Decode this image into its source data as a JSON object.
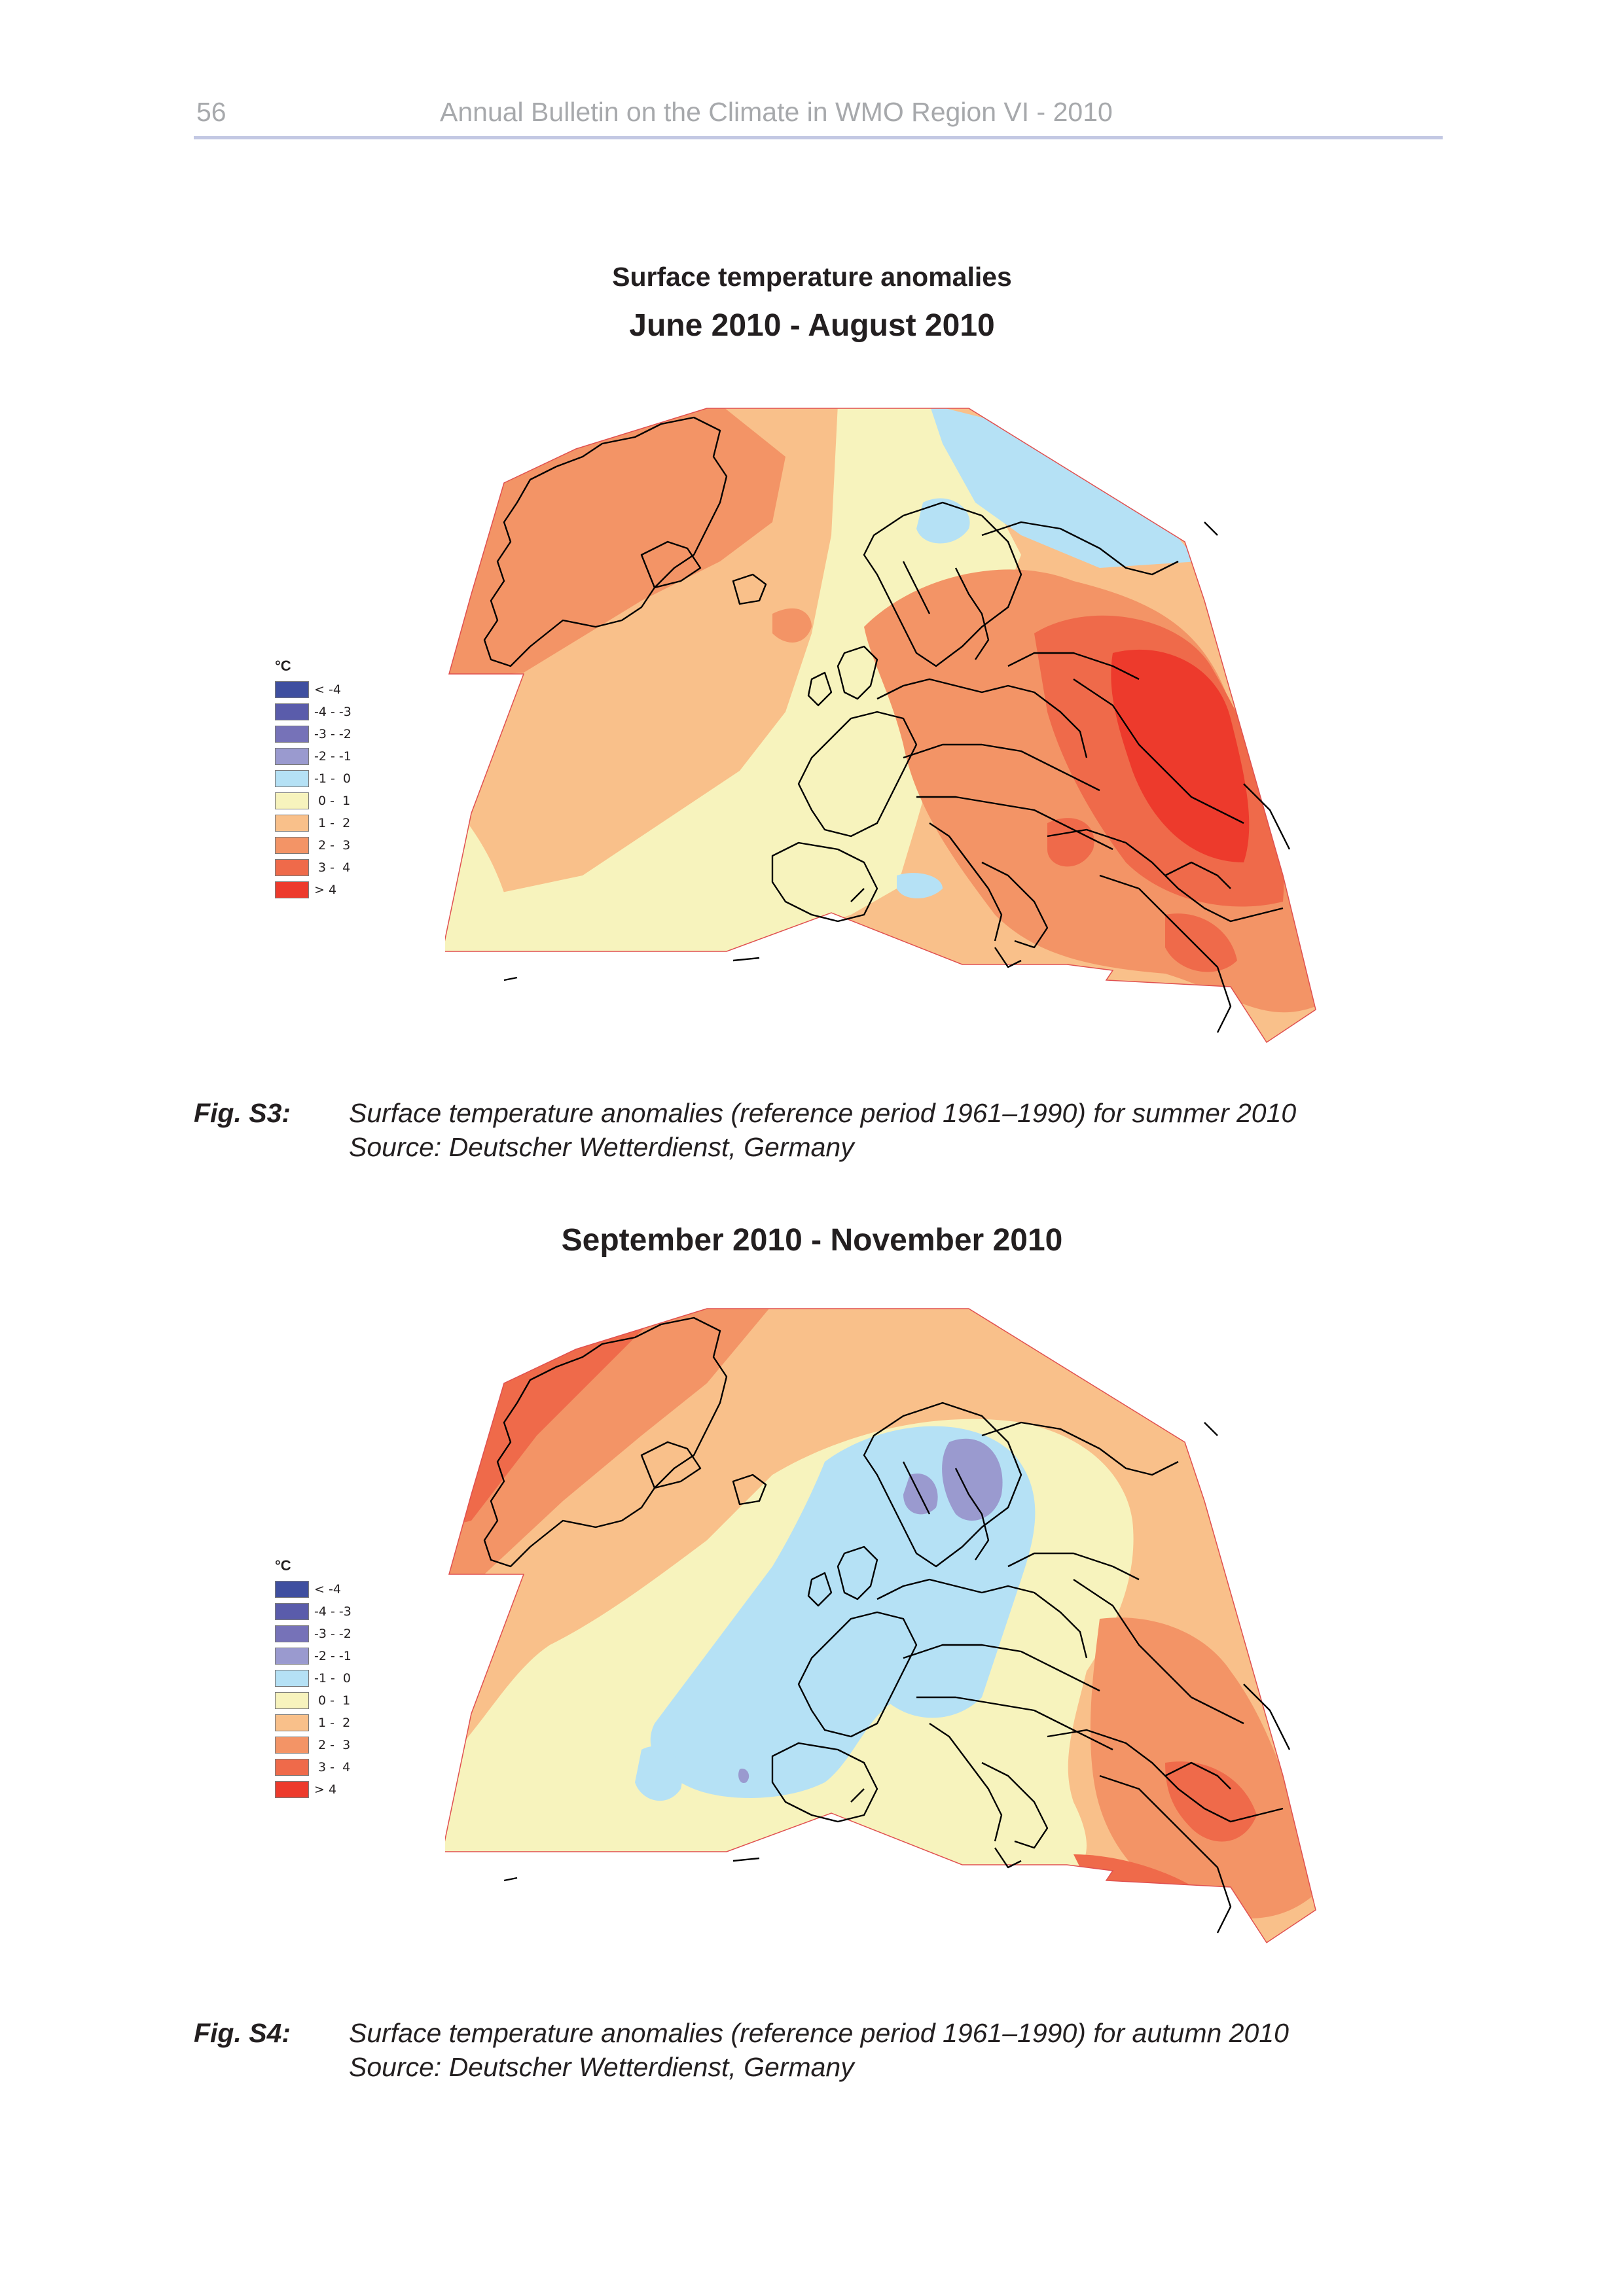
{
  "header": {
    "page_number": "56",
    "running_title": "Annual Bulletin on the Climate in WMO Region VI - 2010"
  },
  "main_title": "Surface temperature anomalies",
  "figures": [
    {
      "period_title": "June 2010 - August 2010",
      "caption_label": "Fig. S3:",
      "caption_line1": "Surface temperature anomalies (reference period 1961–1990) for summer 2010",
      "caption_line2": "Source: Deutscher Wetterdienst, Germany",
      "map_icon": "temperature-anomaly-map-summer"
    },
    {
      "period_title": "September 2010 - November 2010",
      "caption_label": "Fig. S4:",
      "caption_line1": "Surface temperature anomalies (reference period 1961–1990) for autumn 2010",
      "caption_line2": "Source: Deutscher Wetterdienst, Germany",
      "map_icon": "temperature-anomaly-map-autumn"
    }
  ],
  "legend": {
    "unit": "°C",
    "classes": [
      {
        "label": "< -4",
        "color": "#3f4fa0"
      },
      {
        "label": "-4 - -3",
        "color": "#5a5cab"
      },
      {
        "label": "-3 - -2",
        "color": "#7672b8"
      },
      {
        "label": "-2 - -1",
        "color": "#9a9acf"
      },
      {
        "label": "-1 -  0",
        "color": "#b5e1f5"
      },
      {
        "label": " 0 -  1",
        "color": "#f7f3bd"
      },
      {
        "label": " 1 -  2",
        "color": "#f9c08a"
      },
      {
        "label": " 2 -  3",
        "color": "#f39466"
      },
      {
        "label": " 3 -  4",
        "color": "#ef6a4a"
      },
      {
        "label": "> 4",
        "color": "#ed3a2c"
      }
    ]
  }
}
